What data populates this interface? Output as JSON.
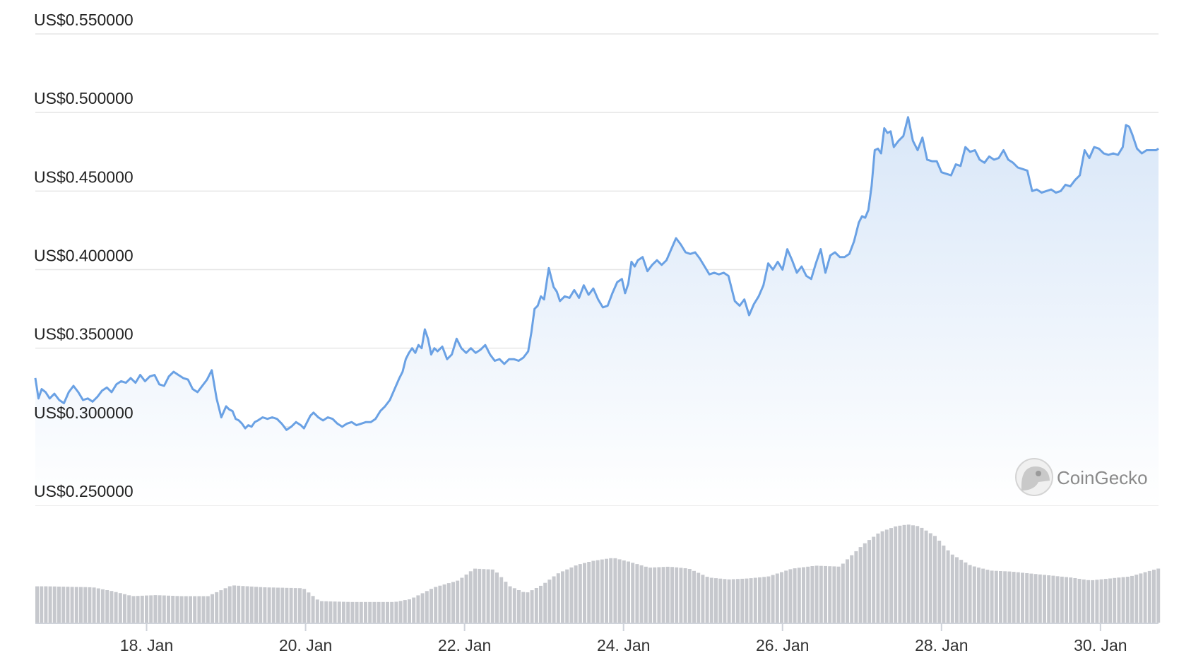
{
  "chart_data": {
    "type": "area",
    "ylim": [
      0.25,
      0.55
    ],
    "y_ticks": [
      {
        "value": 0.55,
        "label": "US$0.550000"
      },
      {
        "value": 0.5,
        "label": "US$0.500000"
      },
      {
        "value": 0.45,
        "label": "US$0.450000"
      },
      {
        "value": 0.4,
        "label": "US$0.400000"
      },
      {
        "value": 0.35,
        "label": "US$0.350000"
      },
      {
        "value": 0.3,
        "label": "US$0.300000"
      },
      {
        "value": 0.25,
        "label": "US$0.250000"
      }
    ],
    "x_range_days": [
      16.6,
      30.73
    ],
    "x_ticks": [
      {
        "day": 18,
        "label": "18. Jan"
      },
      {
        "day": 20,
        "label": "20. Jan"
      },
      {
        "day": 22,
        "label": "22. Jan"
      },
      {
        "day": 24,
        "label": "24. Jan"
      },
      {
        "day": 26,
        "label": "26. Jan"
      },
      {
        "day": 28,
        "label": "28. Jan"
      },
      {
        "day": 30,
        "label": "30. Jan"
      }
    ],
    "series": [
      {
        "kind": "price",
        "x": [
          16.6,
          16.64,
          16.68,
          16.73,
          16.78,
          16.84,
          16.9,
          16.96,
          17.02,
          17.08,
          17.14,
          17.2,
          17.26,
          17.32,
          17.38,
          17.44,
          17.5,
          17.56,
          17.62,
          17.68,
          17.74,
          17.8,
          17.86,
          17.92,
          17.98,
          18.04,
          18.1,
          18.16,
          18.22,
          18.28,
          18.34,
          18.4,
          18.46,
          18.52,
          18.58,
          18.64,
          18.7,
          18.76,
          18.82,
          18.88,
          18.94,
          19.0,
          19.04,
          19.08,
          19.12,
          19.16,
          19.2,
          19.24,
          19.28,
          19.32,
          19.36,
          19.4,
          19.46,
          19.52,
          19.58,
          19.64,
          19.7,
          19.76,
          19.82,
          19.88,
          19.94,
          19.98,
          20.02,
          20.06,
          20.1,
          20.16,
          20.22,
          20.28,
          20.34,
          20.4,
          20.46,
          20.52,
          20.58,
          20.64,
          20.7,
          20.76,
          20.82,
          20.88,
          20.94,
          21.0,
          21.06,
          21.12,
          21.18,
          21.22,
          21.26,
          21.3,
          21.34,
          21.38,
          21.42,
          21.46,
          21.5,
          21.54,
          21.58,
          21.62,
          21.66,
          21.72,
          21.78,
          21.84,
          21.9,
          21.96,
          22.02,
          22.08,
          22.14,
          22.2,
          22.26,
          22.32,
          22.38,
          22.44,
          22.5,
          22.56,
          22.62,
          22.68,
          22.74,
          22.8,
          22.84,
          22.88,
          22.92,
          22.96,
          23.0,
          23.06,
          23.12,
          23.16,
          23.2,
          23.26,
          23.32,
          23.38,
          23.44,
          23.5,
          23.56,
          23.62,
          23.68,
          23.74,
          23.8,
          23.86,
          23.92,
          23.98,
          24.02,
          24.06,
          24.1,
          24.14,
          24.18,
          24.24,
          24.3,
          24.36,
          24.42,
          24.48,
          24.54,
          24.6,
          24.66,
          24.72,
          24.78,
          24.84,
          24.9,
          24.96,
          25.02,
          25.08,
          25.14,
          25.2,
          25.26,
          25.32,
          25.36,
          25.4,
          25.46,
          25.52,
          25.58,
          25.64,
          25.7,
          25.76,
          25.82,
          25.88,
          25.94,
          26.0,
          26.06,
          26.12,
          26.18,
          26.24,
          26.3,
          26.36,
          26.42,
          26.48,
          26.54,
          26.6,
          26.66,
          26.72,
          26.78,
          26.84,
          26.9,
          26.96,
          27.0,
          27.04,
          27.08,
          27.12,
          27.16,
          27.2,
          27.24,
          27.28,
          27.32,
          27.36,
          27.4,
          27.46,
          27.52,
          27.58,
          27.64,
          27.7,
          27.76,
          27.82,
          27.88,
          27.94,
          28.0,
          28.06,
          28.12,
          28.18,
          28.24,
          28.3,
          28.36,
          28.42,
          28.48,
          28.54,
          28.6,
          28.66,
          28.72,
          28.78,
          28.84,
          28.9,
          28.96,
          29.02,
          29.08,
          29.14,
          29.2,
          29.26,
          29.32,
          29.38,
          29.44,
          29.5,
          29.56,
          29.62,
          29.68,
          29.74,
          29.8,
          29.86,
          29.92,
          29.98,
          30.04,
          30.1,
          30.16,
          30.22,
          30.28,
          30.32,
          30.36,
          30.4,
          30.46,
          30.52,
          30.58,
          30.64,
          30.7,
          30.73
        ],
        "y": [
          0.331,
          0.318,
          0.324,
          0.322,
          0.318,
          0.321,
          0.317,
          0.315,
          0.322,
          0.326,
          0.322,
          0.317,
          0.318,
          0.316,
          0.319,
          0.323,
          0.325,
          0.322,
          0.327,
          0.329,
          0.328,
          0.331,
          0.328,
          0.333,
          0.329,
          0.332,
          0.333,
          0.327,
          0.326,
          0.332,
          0.335,
          0.333,
          0.331,
          0.33,
          0.324,
          0.322,
          0.326,
          0.33,
          0.336,
          0.318,
          0.306,
          0.313,
          0.311,
          0.31,
          0.305,
          0.304,
          0.302,
          0.299,
          0.301,
          0.3,
          0.303,
          0.304,
          0.306,
          0.305,
          0.306,
          0.305,
          0.302,
          0.298,
          0.3,
          0.303,
          0.301,
          0.299,
          0.303,
          0.307,
          0.309,
          0.306,
          0.304,
          0.306,
          0.305,
          0.302,
          0.3,
          0.302,
          0.303,
          0.301,
          0.302,
          0.303,
          0.303,
          0.305,
          0.31,
          0.313,
          0.317,
          0.324,
          0.331,
          0.335,
          0.343,
          0.347,
          0.35,
          0.347,
          0.352,
          0.35,
          0.362,
          0.356,
          0.346,
          0.35,
          0.348,
          0.351,
          0.343,
          0.346,
          0.356,
          0.35,
          0.347,
          0.35,
          0.347,
          0.349,
          0.352,
          0.346,
          0.342,
          0.343,
          0.34,
          0.343,
          0.343,
          0.342,
          0.344,
          0.348,
          0.36,
          0.375,
          0.377,
          0.383,
          0.381,
          0.401,
          0.389,
          0.386,
          0.38,
          0.383,
          0.382,
          0.387,
          0.382,
          0.39,
          0.384,
          0.388,
          0.381,
          0.376,
          0.377,
          0.385,
          0.392,
          0.394,
          0.385,
          0.391,
          0.405,
          0.402,
          0.406,
          0.408,
          0.399,
          0.403,
          0.406,
          0.403,
          0.406,
          0.413,
          0.42,
          0.416,
          0.411,
          0.41,
          0.411,
          0.407,
          0.402,
          0.397,
          0.398,
          0.397,
          0.398,
          0.396,
          0.388,
          0.38,
          0.377,
          0.381,
          0.371,
          0.378,
          0.383,
          0.39,
          0.404,
          0.4,
          0.405,
          0.4,
          0.413,
          0.406,
          0.398,
          0.402,
          0.396,
          0.394,
          0.404,
          0.413,
          0.398,
          0.409,
          0.411,
          0.408,
          0.408,
          0.41,
          0.418,
          0.43,
          0.434,
          0.433,
          0.438,
          0.453,
          0.476,
          0.477,
          0.474,
          0.49,
          0.487,
          0.488,
          0.478,
          0.482,
          0.485,
          0.497,
          0.482,
          0.476,
          0.484,
          0.47,
          0.469,
          0.469,
          0.462,
          0.461,
          0.46,
          0.467,
          0.466,
          0.478,
          0.475,
          0.476,
          0.47,
          0.468,
          0.472,
          0.47,
          0.471,
          0.476,
          0.47,
          0.468,
          0.465,
          0.464,
          0.463,
          0.45,
          0.451,
          0.449,
          0.45,
          0.451,
          0.449,
          0.45,
          0.454,
          0.453,
          0.457,
          0.46,
          0.476,
          0.471,
          0.478,
          0.477,
          0.474,
          0.473,
          0.474,
          0.473,
          0.478,
          0.492,
          0.491,
          0.486,
          0.477,
          0.474,
          0.476,
          0.476,
          0.476,
          0.477
        ],
        "color": "#6aa1e4"
      },
      {
        "kind": "volume",
        "x": [
          16.7,
          17.3,
          17.55,
          17.8,
          18.1,
          18.4,
          18.75,
          19.05,
          19.45,
          19.95,
          20.15,
          20.55,
          20.95,
          21.1,
          21.3,
          21.6,
          21.9,
          22.1,
          22.35,
          22.55,
          22.75,
          22.95,
          23.15,
          23.4,
          23.6,
          23.85,
          24.05,
          24.3,
          24.55,
          24.8,
          25.05,
          25.3,
          25.55,
          25.8,
          26.1,
          26.4,
          26.7,
          26.8,
          27.0,
          27.2,
          27.4,
          27.55,
          27.7,
          27.9,
          28.1,
          28.35,
          28.6,
          28.85,
          29.1,
          29.35,
          29.6,
          29.85,
          30.1,
          30.35,
          30.7
        ],
        "y": [
          37,
          36,
          32,
          27,
          28,
          27,
          27,
          38,
          36,
          35,
          22,
          21,
          21,
          21,
          24,
          36,
          43,
          55,
          54,
          37,
          30,
          38,
          50,
          59,
          63,
          66,
          62,
          56,
          57,
          55,
          46,
          44,
          45,
          47,
          55,
          58,
          57,
          65,
          80,
          92,
          98,
          100,
          98,
          88,
          70,
          58,
          53,
          52,
          50,
          48,
          46,
          43,
          45,
          47,
          55
        ],
        "color": "#c6c8cd"
      }
    ],
    "watermark": "CoinGecko"
  }
}
